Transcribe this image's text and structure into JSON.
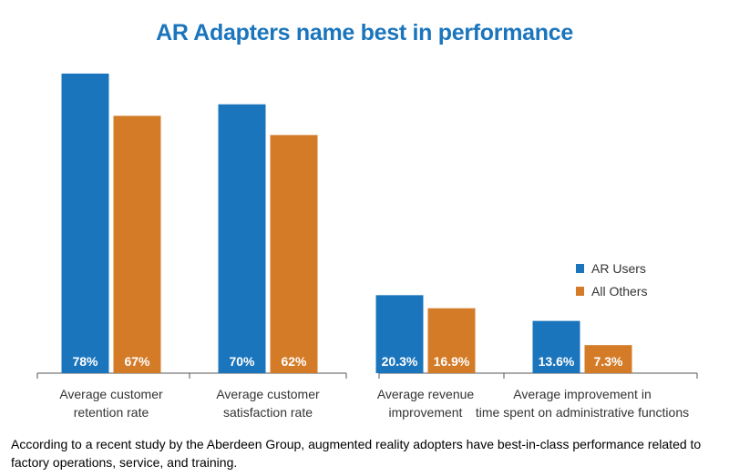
{
  "chart_data": {
    "type": "bar",
    "title": "AR Adapters name best in performance",
    "categories": [
      [
        "Average customer",
        "retention rate"
      ],
      [
        "Average customer",
        "satisfaction rate"
      ],
      [
        "Average revenue",
        "improvement"
      ],
      [
        "Average improvement in",
        "time spent on administrative functions"
      ]
    ],
    "series": [
      {
        "name": "AR Users",
        "color": "#1b75bc",
        "values": [
          78,
          70,
          20.3,
          13.6
        ],
        "labels": [
          "78%",
          "70%",
          "20.3%",
          "13.6%"
        ]
      },
      {
        "name": "All Others",
        "color": "#d47b28",
        "values": [
          67,
          62,
          16.9,
          7.3
        ],
        "labels": [
          "67%",
          "62%",
          "16.9%",
          "7.3%"
        ]
      }
    ],
    "groups": [
      [
        0,
        1
      ],
      [
        2,
        3
      ]
    ],
    "legend": "right",
    "grid": false
  },
  "caption": "According to a recent study by the Aberdeen Group, augmented reality adopters have best-in-class performance related to factory operations, service, and training."
}
